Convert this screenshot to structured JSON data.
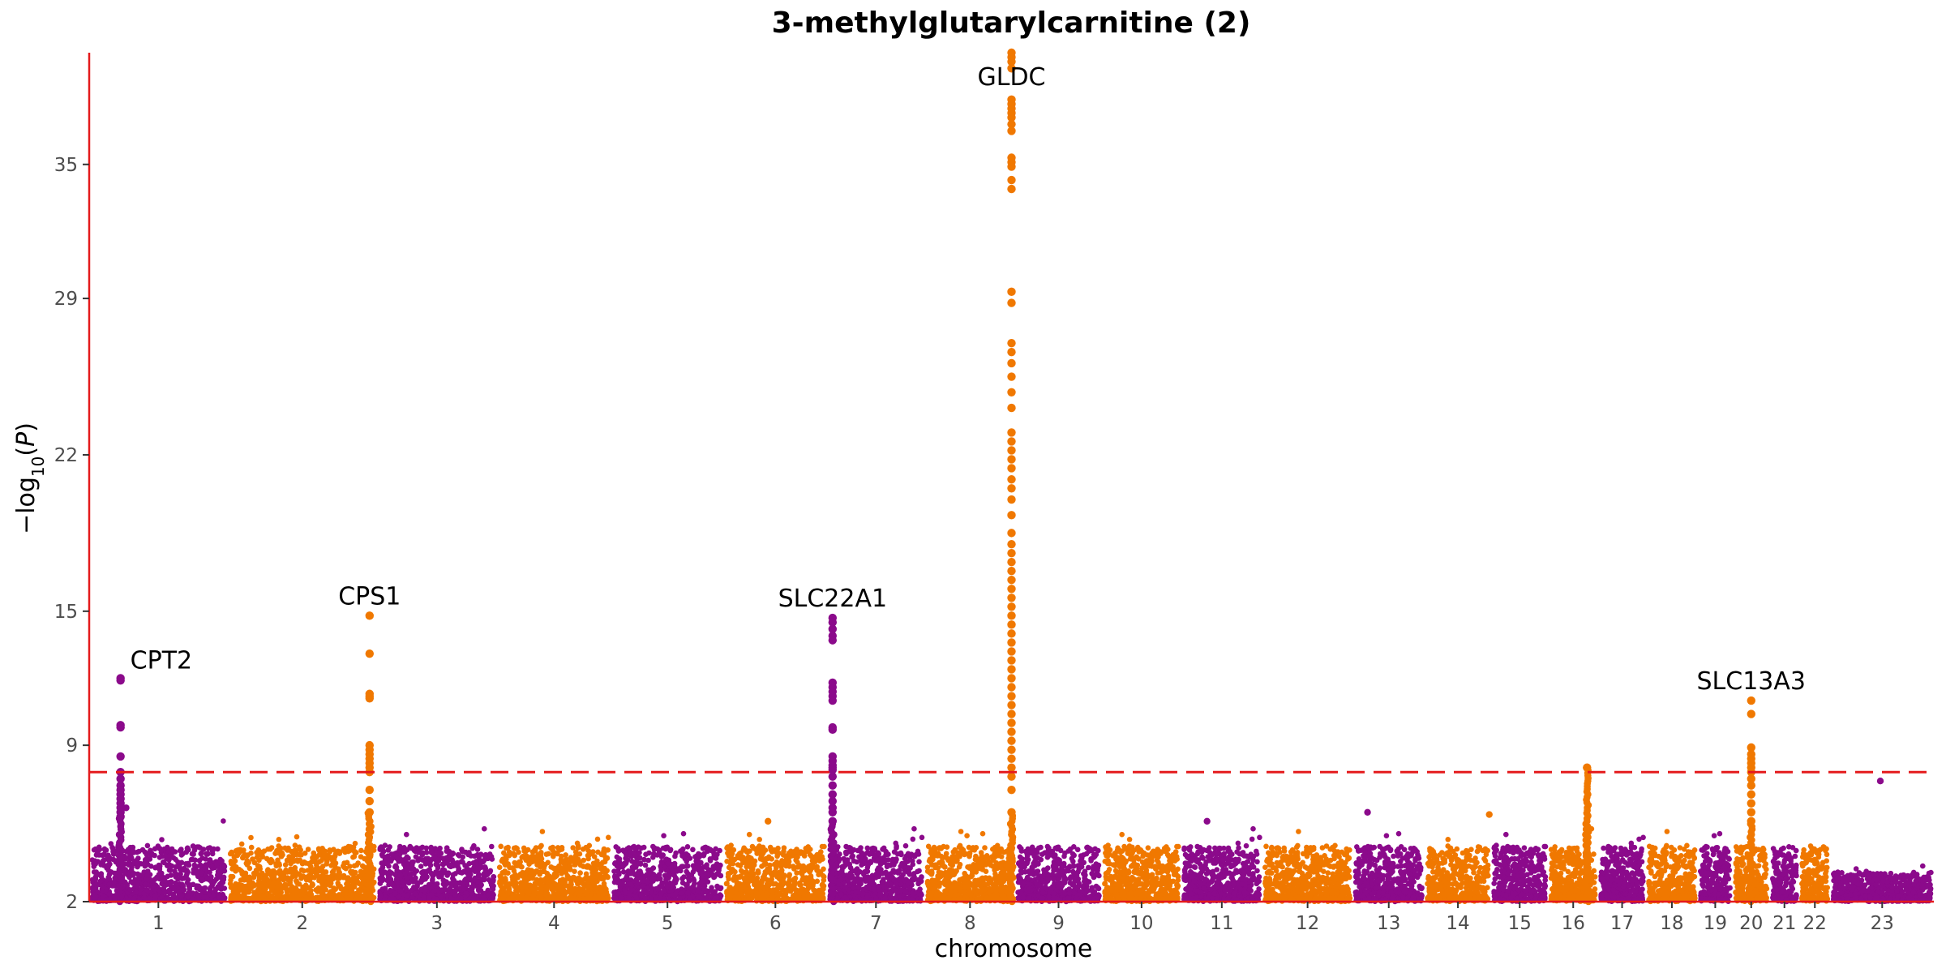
{
  "chart_data": {
    "type": "scatter",
    "title": "3-methylglutarylcarnitine (2)",
    "xlabel": "chromosome",
    "ylabel": "−log10(P)",
    "ylim": [
      2,
      40
    ],
    "yticks": [
      2,
      9,
      15,
      22,
      29,
      35
    ],
    "threshold": 7.8,
    "colors": {
      "odd": "#8b0a8b",
      "even": "#f07800",
      "axis": "#e41a1c",
      "threshold": "#e41a1c"
    },
    "chromosomes": [
      {
        "label": "1",
        "start": 0.0,
        "end": 7.5
      },
      {
        "label": "2",
        "start": 7.5,
        "end": 15.6
      },
      {
        "label": "3",
        "start": 15.6,
        "end": 22.1
      },
      {
        "label": "4",
        "start": 22.1,
        "end": 28.3
      },
      {
        "label": "5",
        "start": 28.3,
        "end": 34.4
      },
      {
        "label": "6",
        "start": 34.4,
        "end": 40.0
      },
      {
        "label": "7",
        "start": 40.0,
        "end": 45.3
      },
      {
        "label": "8",
        "start": 45.3,
        "end": 50.2
      },
      {
        "label": "9",
        "start": 50.2,
        "end": 54.9
      },
      {
        "label": "10",
        "start": 54.9,
        "end": 59.2
      },
      {
        "label": "11",
        "start": 59.2,
        "end": 63.6
      },
      {
        "label": "12",
        "start": 63.6,
        "end": 68.5
      },
      {
        "label": "13",
        "start": 68.5,
        "end": 72.4
      },
      {
        "label": "14",
        "start": 72.4,
        "end": 76.0
      },
      {
        "label": "15",
        "start": 76.0,
        "end": 79.1
      },
      {
        "label": "16",
        "start": 79.1,
        "end": 81.8
      },
      {
        "label": "17",
        "start": 81.8,
        "end": 84.4
      },
      {
        "label": "18",
        "start": 84.4,
        "end": 87.2
      },
      {
        "label": "19",
        "start": 87.2,
        "end": 89.1
      },
      {
        "label": "20",
        "start": 89.1,
        "end": 91.1
      },
      {
        "label": "21",
        "start": 91.1,
        "end": 92.7
      },
      {
        "label": "22",
        "start": 92.7,
        "end": 94.4
      },
      {
        "label": "23",
        "start": 94.4,
        "end": 100.0
      }
    ],
    "peaks": [
      {
        "label": "CPT2",
        "x": 1.7,
        "chrom": 0,
        "values": [
          12.0,
          11.9,
          9.9,
          9.8,
          8.5,
          7.8,
          7.5,
          7.2,
          7.0,
          6.8,
          6.6,
          6.4,
          6.2,
          6.0,
          5.8
        ]
      },
      {
        "label": "CPS1",
        "x": 15.2,
        "chrom": 1,
        "values": [
          14.8,
          13.1,
          11.3,
          11.2,
          11.1,
          9.0,
          8.8,
          8.6,
          8.4,
          8.2,
          8.0,
          7.8,
          7.0,
          6.5,
          6.0
        ]
      },
      {
        "label": "SLC22A1",
        "x": 40.3,
        "chrom": 6,
        "values": [
          14.7,
          14.5,
          14.2,
          13.9,
          13.7,
          11.8,
          11.6,
          11.4,
          11.2,
          11.0,
          9.8,
          9.7,
          8.5,
          8.3,
          8.1,
          8.0,
          7.9,
          7.6,
          7.2,
          6.8,
          6.5,
          6.2,
          6.0,
          5.6
        ]
      },
      {
        "label": "GLDC",
        "x": 50.0,
        "chrom": 7,
        "values": [
          40.0,
          39.8,
          39.6,
          39.3,
          37.9,
          37.7,
          37.5,
          37.3,
          37.1,
          36.8,
          36.5,
          35.3,
          35.1,
          34.9,
          34.3,
          33.9,
          29.3,
          28.8,
          27.0,
          26.6,
          26.1,
          25.5,
          24.8,
          24.1,
          23.0,
          22.6,
          22.2,
          21.8,
          21.4,
          20.9,
          20.5,
          20.0,
          19.3,
          18.5,
          18.0,
          17.6,
          17.2,
          16.8,
          16.4,
          16.0,
          15.6,
          15.2,
          14.8,
          14.4,
          14.0,
          13.6,
          13.2,
          12.8,
          12.4,
          12.0,
          11.6,
          11.2,
          10.8,
          10.4,
          10.0,
          9.6,
          9.2,
          8.8,
          8.4,
          8.0,
          7.6,
          7.0,
          6.0
        ]
      },
      {
        "label": "",
        "x": 81.2,
        "chrom": 15,
        "values": [
          8.0
        ]
      },
      {
        "label": "SLC13A3",
        "x": 90.1,
        "chrom": 19,
        "values": [
          11.0,
          10.4,
          8.9,
          8.6,
          8.4,
          8.2,
          8.0,
          7.8,
          7.5,
          7.2,
          6.8,
          6.4,
          6.0,
          5.6
        ]
      }
    ],
    "outliers": [
      {
        "x": 97.1,
        "y": 7.4,
        "chrom": 22
      },
      {
        "x": 69.3,
        "y": 6.0,
        "chrom": 12
      },
      {
        "x": 60.6,
        "y": 5.6,
        "chrom": 10
      },
      {
        "x": 75.9,
        "y": 5.9,
        "chrom": 13
      },
      {
        "x": 36.8,
        "y": 5.6,
        "chrom": 5
      },
      {
        "x": 2.0,
        "y": 6.2,
        "chrom": 0
      }
    ]
  }
}
